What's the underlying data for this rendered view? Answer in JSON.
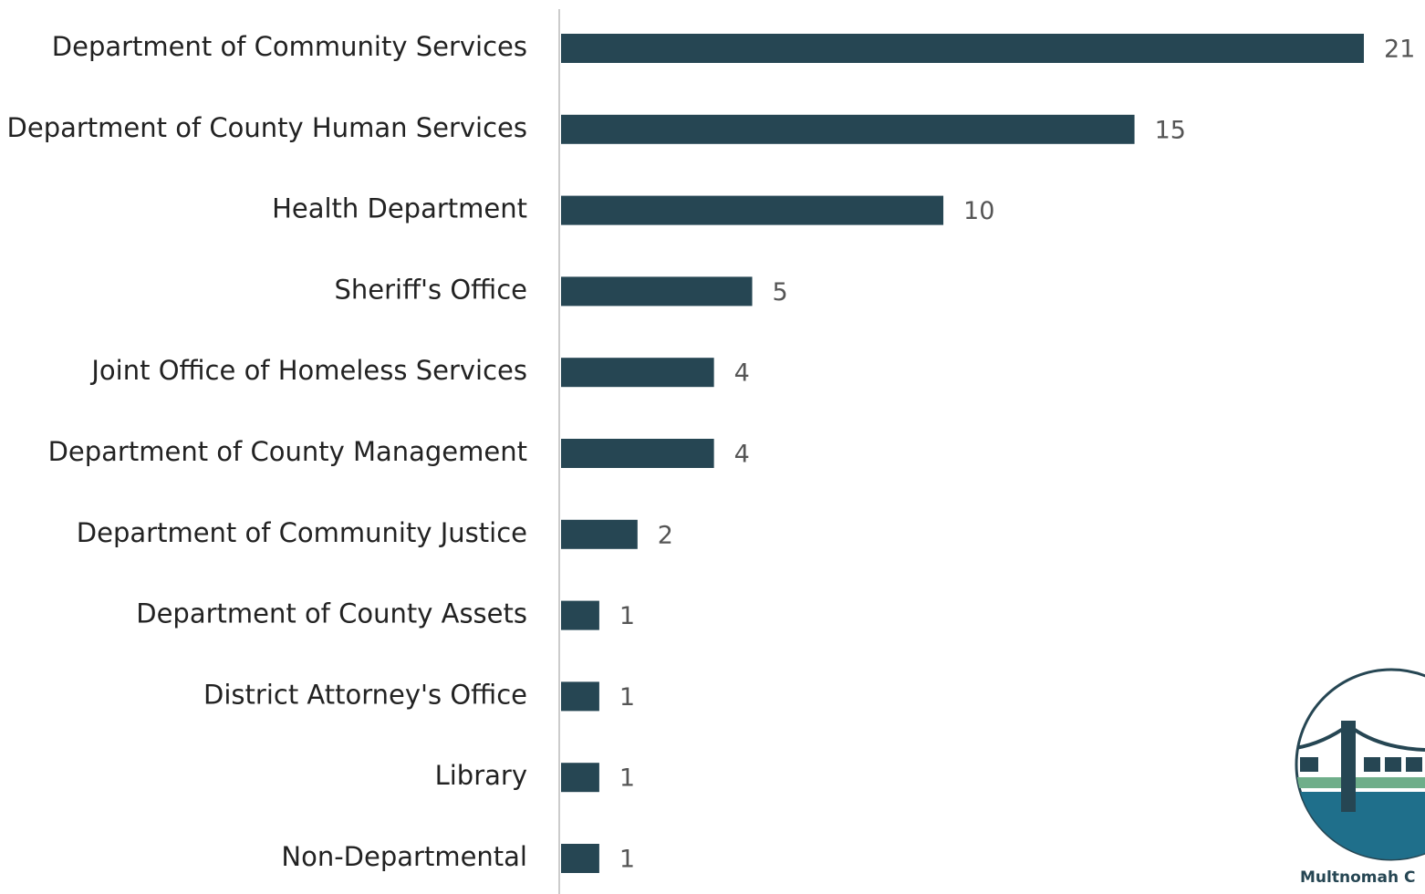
{
  "chart_data": {
    "type": "bar",
    "orientation": "horizontal",
    "color": "#264653",
    "categories": [
      "Department of Community Services",
      "Department of County Human Services",
      "Health Department",
      "Sheriff's Office",
      "Joint Office of Homeless Services",
      "Department of County Management",
      "Department of Community Justice",
      "Department of County Assets",
      "District Attorney's Office",
      "Library",
      "Non-Departmental"
    ],
    "values": [
      21,
      15,
      10,
      5,
      4,
      4,
      2,
      1,
      1,
      1,
      1
    ]
  },
  "logo_text": "Multnomah C"
}
